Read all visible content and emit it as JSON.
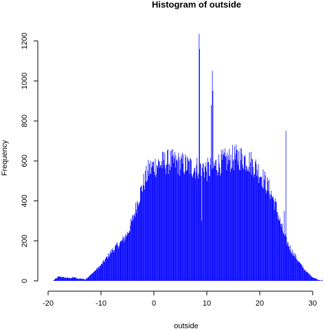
{
  "chart_data": {
    "type": "bar",
    "title": "Histogram of outside",
    "xlabel": "outside",
    "ylabel": "Frequency",
    "xlim": [
      -20,
      32
    ],
    "ylim": [
      0,
      1240
    ],
    "x_ticks": [
      -20,
      -10,
      0,
      10,
      20,
      30
    ],
    "y_ticks": [
      0,
      200,
      400,
      600,
      800,
      1000,
      1200
    ],
    "bin_width": 0.1,
    "bar_color": "#0000ff",
    "grid": false,
    "legend": "none",
    "profile": {
      "x": [
        -19.0,
        -18.0,
        -17.0,
        -16.0,
        -15.0,
        -14.5,
        -14.0,
        -13.0,
        -12.0,
        -11.0,
        -10.0,
        -9.0,
        -8.0,
        -7.0,
        -6.0,
        -5.0,
        -4.0,
        -3.0,
        -2.5,
        -2.0,
        -1.5,
        -1.0,
        0.0,
        1.0,
        2.0,
        3.0,
        4.0,
        5.0,
        6.0,
        7.0,
        8.0,
        9.0,
        10.0,
        11.0,
        12.0,
        13.0,
        14.0,
        15.0,
        16.0,
        17.0,
        18.0,
        19.0,
        20.0,
        21.0,
        22.0,
        23.0,
        24.0,
        25.0,
        26.0,
        27.0,
        28.0,
        29.0,
        30.0,
        31.0,
        31.9
      ],
      "y": [
        3,
        22,
        17,
        14,
        18,
        10,
        12,
        8,
        30,
        55,
        80,
        115,
        150,
        175,
        200,
        240,
        310,
        410,
        450,
        490,
        520,
        555,
        575,
        585,
        592,
        598,
        592,
        585,
        580,
        570,
        565,
        575,
        555,
        565,
        585,
        595,
        605,
        615,
        618,
        612,
        598,
        575,
        540,
        495,
        445,
        375,
        275,
        200,
        150,
        110,
        70,
        40,
        18,
        6,
        2
      ]
    },
    "spikes": [
      {
        "x": 8.5,
        "value": 1235
      },
      {
        "x": 8.6,
        "value": 1160
      },
      {
        "x": 9.0,
        "value": 300
      },
      {
        "x": 11.0,
        "value": 1050
      },
      {
        "x": 11.1,
        "value": 950
      },
      {
        "x": 10.8,
        "value": 880
      },
      {
        "x": 24.9,
        "value": 750
      },
      {
        "x": 24.6,
        "value": 350
      }
    ]
  }
}
